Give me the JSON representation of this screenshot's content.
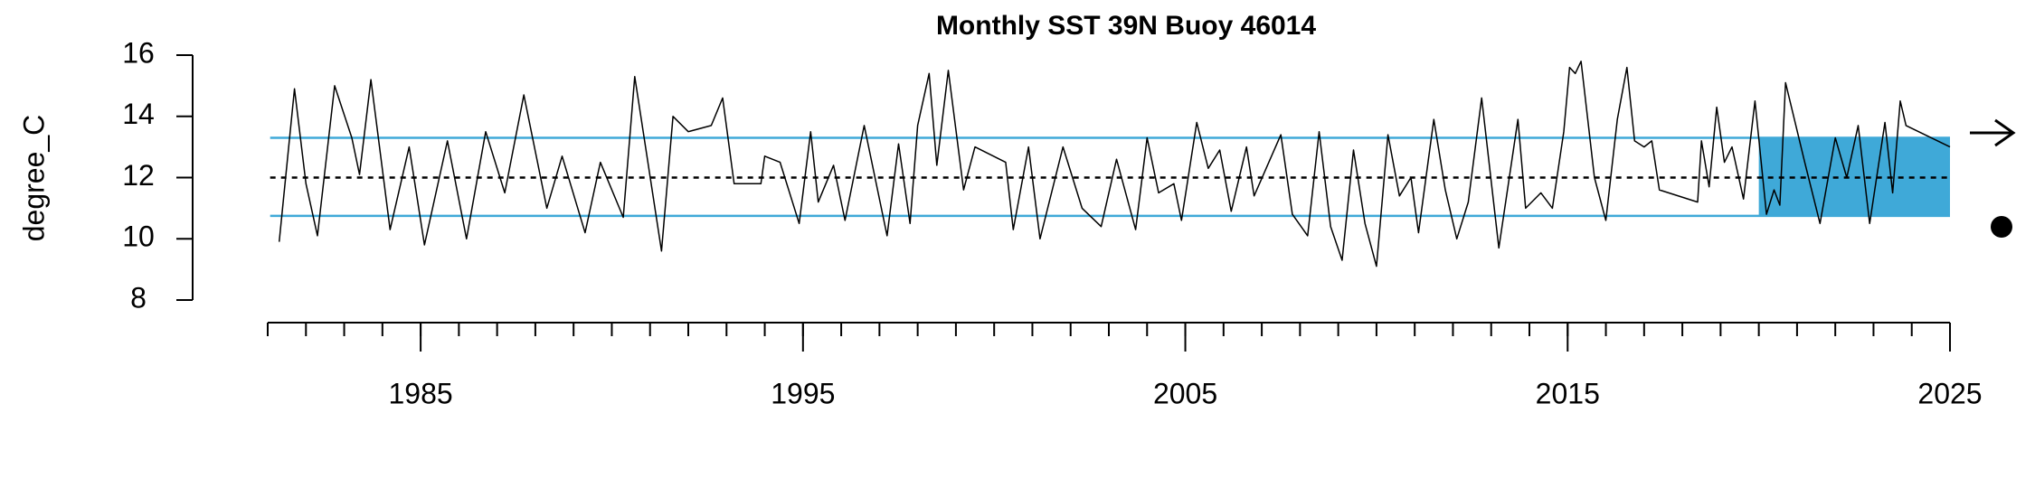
{
  "chart_data": {
    "type": "line",
    "title": "Monthly SST 39N Buoy 46014",
    "ylabel": "degree_C",
    "x": [
      1981.3,
      1981.7,
      1982.0,
      1982.3,
      1982.75,
      1983.2,
      1983.4,
      1983.7,
      1984.2,
      1984.7,
      1985.1,
      1985.7,
      1986.2,
      1986.7,
      1987.2,
      1987.7,
      1988.3,
      1988.7,
      1989.3,
      1989.7,
      1990.3,
      1990.6,
      1991.3,
      1991.6,
      1992.0,
      1992.6,
      1992.9,
      1993.2,
      1993.9,
      1994.0,
      1994.4,
      1994.9,
      1995.2,
      1995.4,
      1995.8,
      1996.1,
      1996.6,
      1997.2,
      1997.5,
      1997.8,
      1998.0,
      1998.3,
      1998.5,
      1998.8,
      1999.2,
      1999.5,
      2000.3,
      2000.5,
      2000.9,
      2001.2,
      2001.8,
      2002.3,
      2002.8,
      2003.2,
      2003.7,
      2004.0,
      2004.3,
      2004.7,
      2004.9,
      2005.3,
      2005.6,
      2005.9,
      2006.2,
      2006.6,
      2006.8,
      2007.5,
      2007.8,
      2008.2,
      2008.5,
      2008.8,
      2009.1,
      2009.4,
      2009.7,
      2010.0,
      2010.3,
      2010.6,
      2010.9,
      2011.1,
      2011.5,
      2011.8,
      2012.1,
      2012.4,
      2012.75,
      2013.2,
      2013.7,
      2013.9,
      2014.3,
      2014.6,
      2014.9,
      2015.05,
      2015.2,
      2015.35,
      2015.7,
      2016.0,
      2016.3,
      2016.55,
      2016.75,
      2017.0,
      2017.2,
      2017.4,
      2018.4,
      2018.5,
      2018.7,
      2018.9,
      2019.1,
      2019.3,
      2019.6,
      2019.9,
      2020.2,
      2020.4,
      2020.55,
      2020.7,
      2021.2,
      2021.6,
      2022.0,
      2022.3,
      2022.6,
      2022.9,
      2023.3,
      2023.5,
      2023.7,
      2023.85,
      2025.0
    ],
    "values": [
      9.9,
      14.9,
      11.8,
      10.1,
      15.0,
      13.3,
      12.1,
      15.2,
      10.3,
      13.0,
      9.8,
      13.2,
      10.0,
      13.5,
      11.5,
      14.7,
      11.0,
      12.7,
      10.2,
      12.5,
      10.7,
      15.3,
      9.6,
      14.0,
      13.5,
      13.7,
      14.6,
      11.8,
      11.8,
      12.7,
      12.5,
      10.5,
      13.5,
      11.2,
      12.4,
      10.6,
      13.7,
      10.1,
      13.1,
      10.5,
      13.7,
      15.4,
      12.4,
      15.5,
      11.6,
      13.0,
      12.5,
      10.3,
      13.0,
      10.0,
      13.0,
      11.0,
      10.4,
      12.6,
      10.3,
      13.3,
      11.5,
      11.8,
      10.6,
      13.8,
      12.3,
      12.9,
      10.9,
      13.0,
      11.4,
      13.4,
      10.8,
      10.1,
      13.5,
      10.4,
      9.3,
      12.9,
      10.5,
      9.1,
      13.4,
      11.4,
      12.0,
      10.2,
      13.9,
      11.6,
      10.0,
      11.2,
      14.6,
      9.7,
      13.9,
      11.0,
      11.5,
      11.0,
      13.5,
      15.6,
      15.4,
      15.8,
      12.0,
      10.6,
      13.9,
      15.6,
      13.2,
      13.0,
      13.2,
      11.6,
      11.2,
      13.2,
      11.7,
      14.3,
      12.5,
      13.0,
      11.3,
      14.5,
      10.8,
      11.6,
      11.1,
      15.1,
      12.5,
      10.5,
      13.3,
      12.0,
      13.7,
      10.5,
      13.8,
      11.5,
      14.5,
      13.7,
      13.0
    ],
    "color": "#000000",
    "mean": 12.0,
    "upper": 13.3,
    "lower": 10.75,
    "band_color": "#3fa9d8",
    "shade_x": [
      2020,
      2025
    ],
    "xlim": [
      1981,
      2025
    ],
    "xticks": [
      1985,
      1995,
      2005,
      2015,
      2025
    ],
    "xticks_minor": [
      1981,
      1982,
      1983,
      1984,
      1985,
      1986,
      1987,
      1988,
      1989,
      1990,
      1991,
      1992,
      1993,
      1994,
      1995,
      1996,
      1997,
      1998,
      1999,
      2000,
      2001,
      2002,
      2003,
      2004,
      2005,
      2006,
      2007,
      2008,
      2009,
      2010,
      2011,
      2012,
      2013,
      2014,
      2015,
      2016,
      2017,
      2018,
      2019,
      2020,
      2021,
      2022,
      2023,
      2024,
      2025
    ],
    "ylim": [
      8,
      16
    ],
    "yticks": [
      8,
      10,
      12,
      14,
      16
    ]
  }
}
